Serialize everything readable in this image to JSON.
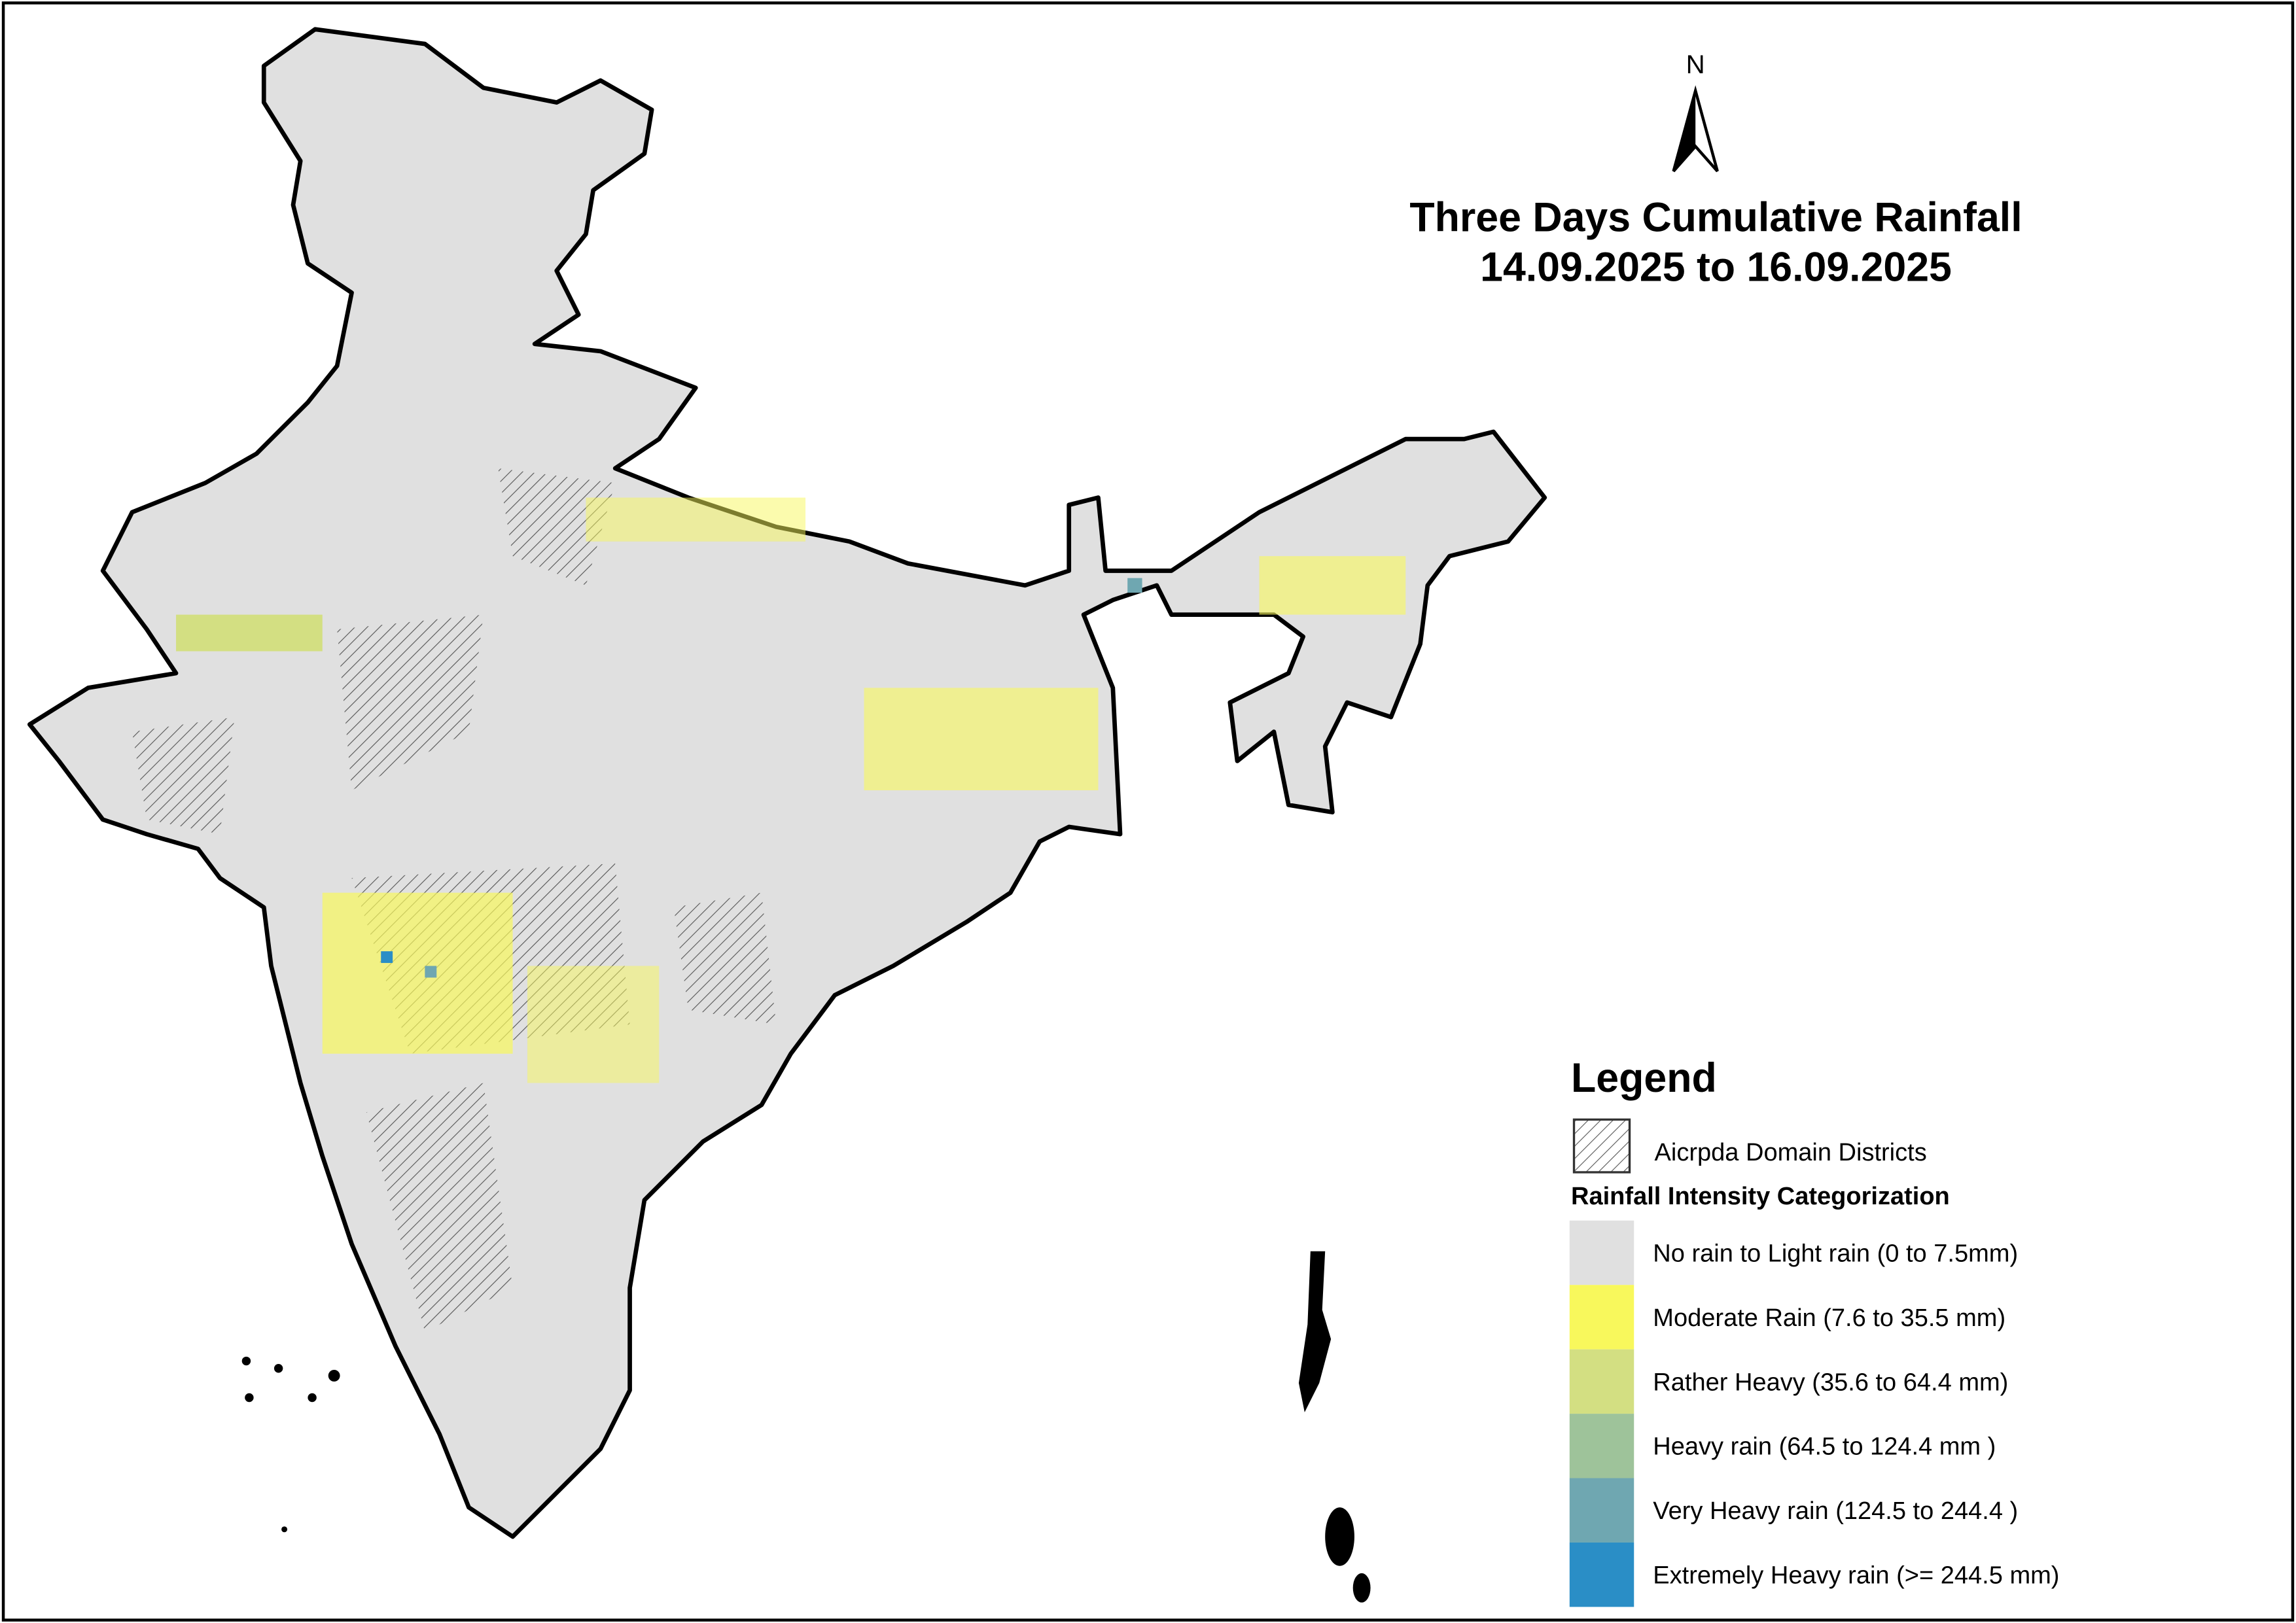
{
  "north_arrow": "N",
  "title": {
    "line1": "Three Days Cumulative Rainfall",
    "line2": "14.09.2025 to 16.09.2025"
  },
  "legend": {
    "title": "Legend",
    "domain_label": "Aicrpda Domain Districts",
    "category_title": "Rainfall Intensity Categorization",
    "items": [
      {
        "label": "No rain to Light rain (0 to 7.5mm)",
        "color": "#e0e0e0"
      },
      {
        "label": "Moderate Rain (7.6 to 35.5 mm)",
        "color": "#f8f85c"
      },
      {
        "label": "Rather Heavy (35.6 to 64.4 mm)",
        "color": "#d3df82"
      },
      {
        "label": "Heavy rain (64.5 to 124.4 mm )",
        "color": "#9ec39a"
      },
      {
        "label": "Very Heavy rain (124.5 to 244.4 )",
        "color": "#6fa7b1"
      },
      {
        "label": "Extremely Heavy rain  (>= 244.5 mm)",
        "color": "#2a8ec6"
      }
    ]
  }
}
